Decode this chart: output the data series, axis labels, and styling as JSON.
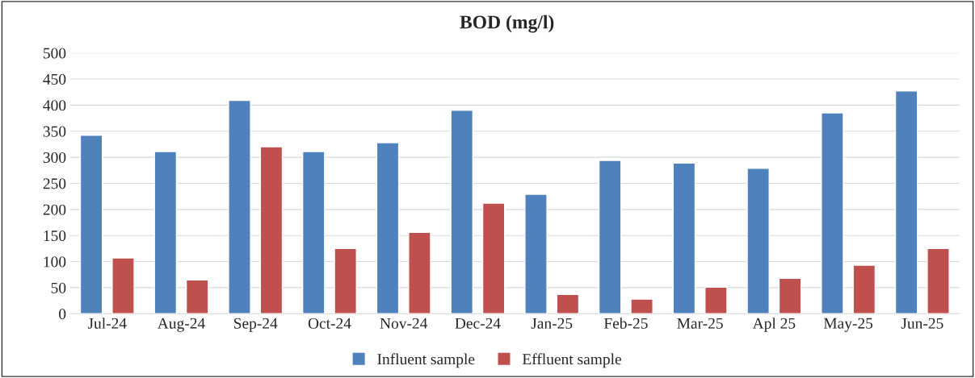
{
  "chart_data": {
    "type": "bar",
    "title": "BOD (mg/l)",
    "categories": [
      "Jul-24",
      "Aug-24",
      "Sep-24",
      "Oct-24",
      "Nov-24",
      "Dec-24",
      "Jan-25",
      "Feb-25",
      "Mar-25",
      "Apl 25",
      "May-25",
      "Jun-25"
    ],
    "series": [
      {
        "name": "Influent sample",
        "color": "#4f81bd",
        "values": [
          342,
          311,
          409,
          311,
          328,
          390,
          229,
          294,
          289,
          279,
          385,
          427
        ]
      },
      {
        "name": "Effluent sample",
        "color": "#c0504d",
        "values": [
          107,
          65,
          320,
          125,
          156,
          212,
          37,
          28,
          51,
          68,
          93,
          125
        ]
      }
    ],
    "ylim": [
      0,
      500
    ],
    "yticks": [
      0,
      50,
      100,
      150,
      200,
      250,
      300,
      350,
      400,
      450,
      500
    ],
    "grid": "y",
    "legend": "bottom"
  }
}
